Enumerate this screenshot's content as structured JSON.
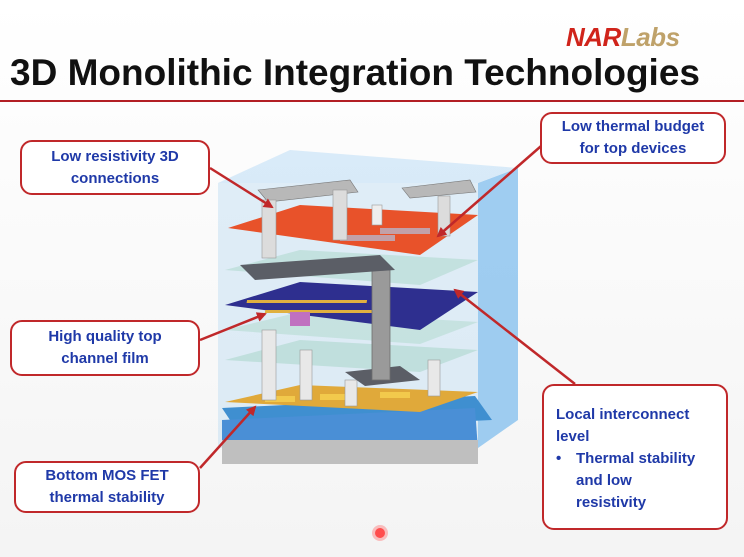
{
  "logo": {
    "part1": "NAR",
    "part2": "Labs"
  },
  "title": "3D Monolithic Integration Technologies",
  "callouts": {
    "left_top": {
      "line1": "Low resistivity 3D",
      "line2": "connections"
    },
    "right_top": {
      "line1": "Low thermal budget",
      "line2": "for top devices"
    },
    "left_mid": {
      "line1": "High quality top",
      "line2": "channel film"
    },
    "left_bottom": {
      "line1": "Bottom MOS FET",
      "line2": "thermal stability"
    },
    "right_bottom": {
      "line1": "Local interconnect",
      "line2": "level",
      "bullet": "•",
      "bullet_line1": "Thermal stability",
      "bullet_line2": "and low",
      "bullet_line3": "resistivity"
    }
  },
  "colors": {
    "accent_red": "#c0282a",
    "callout_text": "#1f39a8",
    "top_layer": "#e8522a",
    "mid_layer": "#2e2f8f",
    "bottom_layer": "#e0a93a",
    "substrate": "#3f8fd0",
    "side_panel": "#8ec4ee"
  }
}
